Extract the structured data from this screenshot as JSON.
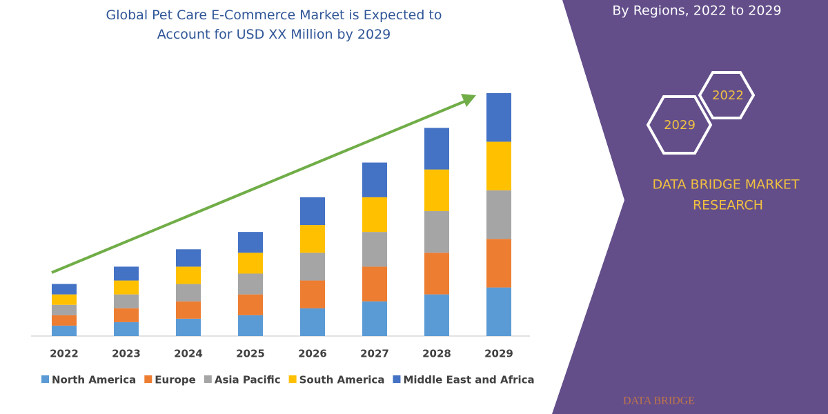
{
  "chart_data": {
    "type": "bar",
    "stacked": true,
    "title": "Global Pet Care E-Commerce Market is Expected to Account for USD XX Million by 2029",
    "categories": [
      "2022",
      "2023",
      "2024",
      "2025",
      "2026",
      "2027",
      "2028",
      "2029"
    ],
    "series": [
      {
        "name": "North America",
        "color": "#5b9bd5",
        "values": [
          15,
          20,
          25,
          30,
          40,
          50,
          60,
          70
        ]
      },
      {
        "name": "Europe",
        "color": "#ed7d31",
        "values": [
          15,
          20,
          25,
          30,
          40,
          50,
          60,
          70
        ]
      },
      {
        "name": "Asia Pacific",
        "color": "#a5a5a5",
        "values": [
          15,
          20,
          25,
          30,
          40,
          50,
          60,
          70
        ]
      },
      {
        "name": "South America",
        "color": "#ffc000",
        "values": [
          15,
          20,
          25,
          30,
          40,
          50,
          60,
          70
        ]
      },
      {
        "name": "Middle East and Africa",
        "color": "#4472c4",
        "values": [
          15,
          20,
          25,
          30,
          40,
          50,
          60,
          70
        ]
      }
    ]
  },
  "sidebar": {
    "subtitle": "By Regions, 2022 to 2029",
    "badges": [
      "2022",
      "2029"
    ],
    "brand_lines": [
      "DATA BRIDGE MARKET",
      "RESEARCH"
    ],
    "logo_text": "DATA BRIDGE"
  }
}
